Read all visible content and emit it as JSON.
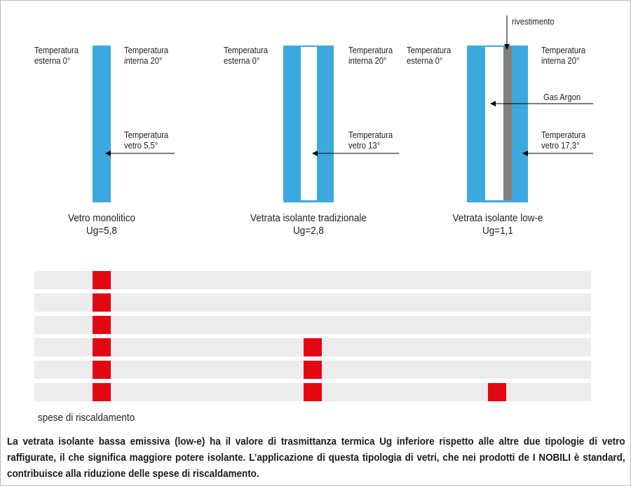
{
  "panels": [
    {
      "ext_temp": "Temperatura\nesterna 0°",
      "int_temp": "Temperatura\ninterna 20°",
      "glass_temp": "Temperatura\nvetro 5,5°",
      "caption": "Vetro monolitico\nUg=5,8"
    },
    {
      "ext_temp": "Temperatura\nesterna 0°",
      "int_temp": "Temperatura\ninterna 20°",
      "glass_temp": "Temperatura\nvetro 13°",
      "caption": "Vetrata isolante tradizionale\nUg=2,8"
    },
    {
      "ext_temp": "Temperatura\nesterna 0°",
      "int_temp": "Temperatura\ninterna 20°",
      "glass_temp": "Temperatura\nvetro 17,3°",
      "coating_label": "rivestimento",
      "gas_label": "Gas Argon",
      "caption": "Vetrata isolante low-e\nUg=1,1"
    }
  ],
  "heating_costs": {
    "legend": "spese di riscaldamento",
    "levels": [
      6,
      3,
      1
    ]
  },
  "colors": {
    "glass": "#3ba9de",
    "coating": "#808080",
    "cost_block": "#e30613",
    "row_background": "#ececec"
  },
  "description": "La vetrata isolante bassa emissiva (low-e) ha il valore di trasmittanza termica Ug inferiore rispetto alle altre due tipologie di vetro raffigurate, il che significa maggiore potere isolante. L’applicazione di questa tipologia di vetri, che nei prodotti de I NOBILI è standard, contribuisce alla riduzione delle spese di riscaldamento."
}
